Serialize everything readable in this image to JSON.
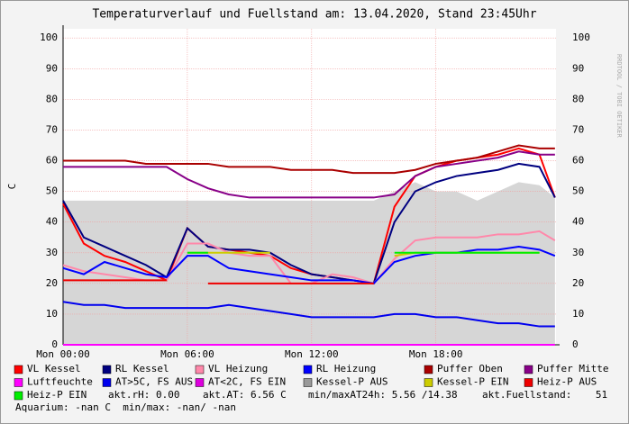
{
  "chart_data": {
    "type": "line",
    "title": "Temperaturverlauf und Fuellstand am: 13.04.2020, Stand 23:45Uhr",
    "y_label": "C",
    "watermark": "RRDTOOL / TOBI OETIKER",
    "x": [
      0,
      1,
      2,
      3,
      4,
      5,
      6,
      7,
      8,
      9,
      10,
      11,
      12,
      13,
      14,
      15,
      16,
      17,
      18,
      19,
      20,
      21,
      22,
      23,
      23.75
    ],
    "xlim": [
      0,
      23.8
    ],
    "xticks": [
      {
        "value": 0,
        "label": "Mon 00:00"
      },
      {
        "value": 6,
        "label": "Mon 06:00"
      },
      {
        "value": 12,
        "label": "Mon 12:00"
      },
      {
        "value": 18,
        "label": "Mon 18:00"
      }
    ],
    "ylim": [
      0,
      103
    ],
    "yticks": [
      0,
      10,
      20,
      30,
      40,
      50,
      60,
      70,
      80,
      90,
      100
    ],
    "grid": true,
    "series": [
      {
        "name": "VL Kessel",
        "color": "#ff0000",
        "values": [
          46,
          33,
          29,
          27,
          24,
          21,
          38,
          32,
          31,
          30,
          29,
          25,
          23,
          22,
          21,
          20,
          45,
          55,
          58,
          60,
          61,
          62,
          64,
          62,
          48
        ]
      },
      {
        "name": "RL Kessel",
        "color": "#000080",
        "values": [
          47,
          35,
          32,
          29,
          26,
          22,
          38,
          32,
          31,
          31,
          30,
          26,
          23,
          22,
          21,
          20,
          40,
          50,
          53,
          55,
          56,
          57,
          59,
          58,
          48
        ]
      },
      {
        "name": "VL Heizung",
        "color": "#ff88aa",
        "values": [
          26,
          24,
          23,
          22,
          21,
          21,
          33,
          33,
          30,
          29,
          29,
          20,
          20,
          23,
          22,
          20,
          28,
          34,
          35,
          35,
          35,
          36,
          36,
          37,
          34
        ]
      },
      {
        "name": "RL Heizung",
        "color": "#0000ff",
        "values": [
          25,
          23,
          27,
          25,
          23,
          22,
          29,
          29,
          25,
          24,
          23,
          22,
          21,
          21,
          21,
          20,
          27,
          29,
          30,
          30,
          31,
          31,
          32,
          31,
          29
        ]
      },
      {
        "name": "Puffer Oben",
        "color": "#aa0000",
        "values": [
          60,
          60,
          60,
          60,
          59,
          59,
          59,
          59,
          58,
          58,
          58,
          57,
          57,
          57,
          56,
          56,
          56,
          57,
          59,
          60,
          61,
          63,
          65,
          64,
          64
        ]
      },
      {
        "name": "Puffer Mitte",
        "color": "#880088",
        "values": [
          58,
          58,
          58,
          58,
          58,
          58,
          54,
          51,
          49,
          48,
          48,
          48,
          48,
          48,
          48,
          48,
          49,
          55,
          58,
          59,
          60,
          61,
          63,
          62,
          62
        ]
      },
      {
        "name": "Luftfeuchte",
        "color": "#ff00ff",
        "values": [
          0,
          0,
          0,
          0,
          0,
          0,
          0,
          0,
          0,
          0,
          0,
          0,
          0,
          0,
          0,
          0,
          0,
          0,
          0,
          0,
          0,
          0,
          0,
          0,
          0
        ]
      },
      {
        "name": "AT>5C, FS AUS",
        "color": "#0000ee",
        "values": [
          14,
          13,
          13,
          12,
          12,
          12,
          12,
          12,
          13,
          12,
          11,
          10,
          9,
          9,
          9,
          9,
          10,
          10,
          9,
          9,
          8,
          7,
          7,
          6,
          6
        ]
      },
      {
        "name": "AT<2C, FS EIN",
        "color": "#dd00dd",
        "values": [
          null,
          null,
          null,
          null,
          null,
          null,
          null,
          null,
          null,
          null,
          null,
          null,
          null,
          null,
          null,
          null,
          null,
          null,
          null,
          null,
          null,
          null,
          null,
          null,
          null
        ]
      },
      {
        "name": "Kessel-P AUS",
        "color": "#999999",
        "area": true,
        "values": [
          47,
          47,
          47,
          47,
          47,
          47,
          47,
          47,
          47,
          47,
          47,
          47,
          47,
          47,
          47,
          47,
          50,
          53,
          50,
          50,
          47,
          50,
          53,
          52,
          48
        ]
      },
      {
        "name": "Kessel-P EIN",
        "color": "#cccc00",
        "values": [
          null,
          null,
          null,
          null,
          null,
          null,
          30,
          30,
          30,
          30,
          30,
          null,
          null,
          null,
          null,
          null,
          29,
          30,
          30,
          30,
          30,
          30,
          30,
          30,
          null
        ]
      },
      {
        "name": "Heiz-P AUS",
        "color": "#ee0000",
        "values": [
          21,
          21,
          21,
          21,
          21,
          21,
          null,
          20,
          20,
          20,
          20,
          20,
          20,
          20,
          20,
          20,
          null,
          null,
          null,
          null,
          null,
          null,
          null,
          null,
          21
        ]
      },
      {
        "name": "Heiz-P EIN",
        "color": "#00ee00",
        "values": [
          null,
          null,
          null,
          null,
          null,
          null,
          30,
          30,
          null,
          null,
          null,
          null,
          null,
          null,
          null,
          null,
          30,
          30,
          30,
          30,
          30,
          30,
          30,
          30,
          null
        ]
      }
    ],
    "notes": [
      "akt.rH: 0.00",
      "akt.AT: 6.56 C",
      "min/maxAT24h: 5.56 /14.38",
      "akt.Fuellstand:    51",
      "Aquarium: -nan C  min/max: -nan/ -nan"
    ]
  }
}
